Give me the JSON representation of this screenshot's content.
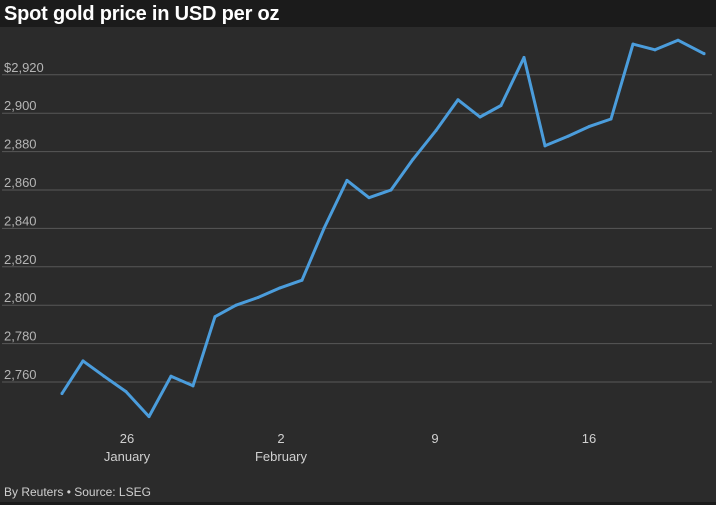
{
  "title": "Spot gold price in USD per oz",
  "source": "By Reuters • Source: LSEG",
  "colors": {
    "line": "#4b9ddc",
    "background": "#1b1b1b",
    "plot_background": "#2b2b2b",
    "grid": "#585858"
  },
  "chart_data": {
    "type": "line",
    "title": "Spot gold price in USD per oz",
    "xlabel": "",
    "ylabel": "",
    "ylim": [
      2740,
      2950
    ],
    "yticks": [
      2760,
      2780,
      2800,
      2820,
      2840,
      2860,
      2880,
      2900,
      2920
    ],
    "ytick_labels": [
      "2,760",
      "2,780",
      "2,800",
      "2,820",
      "2,840",
      "2,860",
      "2,880",
      "2,900",
      "$2,920"
    ],
    "xticks": [
      {
        "date": "2025-01-26",
        "label": "26",
        "sublabel": "January"
      },
      {
        "date": "2025-02-02",
        "label": "2",
        "sublabel": "February"
      },
      {
        "date": "2025-02-09",
        "label": "9",
        "sublabel": ""
      },
      {
        "date": "2025-02-16",
        "label": "16",
        "sublabel": ""
      }
    ],
    "xlim": [
      "2025-01-22",
      "2025-02-20"
    ],
    "grid": true,
    "series": [
      {
        "x": [
          "2025-01-22",
          "2025-01-23",
          "2025-01-24",
          "2025-01-25",
          "2025-01-27",
          "2025-01-28",
          "2025-01-28T12:00",
          "2025-01-29",
          "2025-01-30",
          "2025-01-31",
          "2025-02-01",
          "2025-02-02",
          "2025-02-03",
          "2025-02-04",
          "2025-02-05",
          "2025-02-06",
          "2025-02-07",
          "2025-02-08",
          "2025-02-09",
          "2025-02-10",
          "2025-02-11",
          "2025-02-12",
          "2025-02-13",
          "2025-02-14",
          "2025-02-15",
          "2025-02-16",
          "2025-02-17",
          "2025-02-18",
          "2025-02-19",
          "2025-02-20",
          "2025-02-21"
        ],
        "values": [
          2754,
          2771,
          2763,
          2755,
          2742,
          2763,
          2758,
          2794,
          2800,
          2804,
          2809,
          2813,
          2840,
          2865,
          2856,
          2860,
          2876,
          2891,
          2907,
          2898,
          2904,
          2929,
          2883,
          2888,
          2893,
          2897,
          2936,
          2933,
          2938,
          2931,
          2931
        ]
      }
    ]
  }
}
